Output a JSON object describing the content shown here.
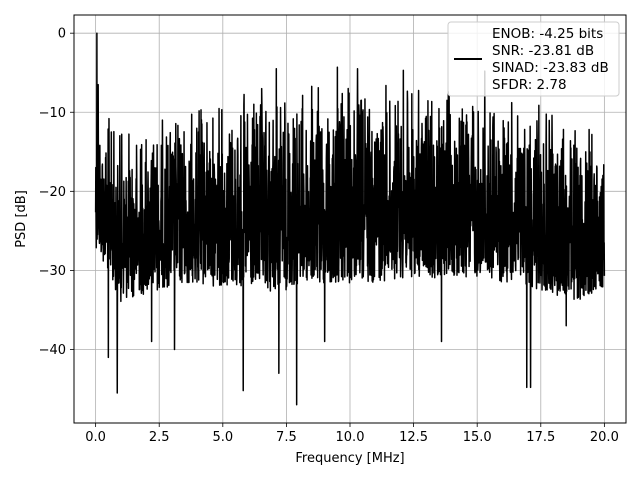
{
  "chart_data": {
    "type": "line",
    "title": "",
    "xlabel": "Frequency [MHz]",
    "ylabel": "PSD [dB]",
    "xlim": [
      -0.85,
      20.85
    ],
    "ylim": [
      -49.3,
      2.3
    ],
    "grid": true,
    "x_ticks": [
      0.0,
      2.5,
      5.0,
      7.5,
      10.0,
      12.5,
      15.0,
      17.5,
      20.0
    ],
    "x_tick_labels": [
      "0.0",
      "2.5",
      "5.0",
      "7.5",
      "10.0",
      "12.5",
      "15.0",
      "17.5",
      "20.0"
    ],
    "y_ticks": [
      0,
      -10,
      -20,
      -30,
      -40
    ],
    "y_tick_labels": [
      "0",
      "−10",
      "−20",
      "−30",
      "−40"
    ],
    "series_color": "#000000",
    "legend": {
      "placement": "top-right",
      "entries": [
        "ENOB: -4.25 bits",
        "SNR: -23.81 dB",
        "SINAD: -23.83 dB",
        "SFDR: 2.78"
      ]
    },
    "series": [
      {
        "x_range": [
          0.0,
          20.0
        ],
        "upper_envelope": {
          "x": [
            0.0,
            0.3,
            0.5,
            1.0,
            1.5,
            2.0,
            3.0,
            4.0,
            5.0,
            6.0,
            7.0,
            8.0,
            9.0,
            10.0,
            11.0,
            12.0,
            13.0,
            14.0,
            15.0,
            16.0,
            17.0,
            18.0,
            19.0,
            20.0
          ],
          "y": [
            -6.0,
            -10.0,
            -9.5,
            -11.5,
            -11.0,
            -10.5,
            -9.5,
            -8.5,
            -7.5,
            -6.8,
            -6.3,
            -6.0,
            -5.8,
            -5.8,
            -5.8,
            -6.0,
            -6.3,
            -6.8,
            -7.3,
            -7.8,
            -8.5,
            -9.5,
            -10.5,
            -12.0
          ]
        },
        "lower_envelope": {
          "x": [
            0.0,
            1.0,
            2.0,
            3.0,
            5.0,
            7.0,
            8.0,
            10.0,
            12.0,
            14.0,
            15.0,
            17.0,
            18.0,
            19.0,
            20.0
          ],
          "y": [
            -27.0,
            -34.0,
            -33.0,
            -32.0,
            -32.0,
            -33.0,
            -32.0,
            -32.0,
            -31.0,
            -31.0,
            -31.0,
            -32.0,
            -33.0,
            -34.0,
            -32.0
          ]
        },
        "dips": [
          {
            "x": 0.5,
            "y": -41.0
          },
          {
            "x": 0.85,
            "y": -45.5
          },
          {
            "x": 2.2,
            "y": -39.0
          },
          {
            "x": 3.1,
            "y": -40.0
          },
          {
            "x": 5.8,
            "y": -45.2
          },
          {
            "x": 7.2,
            "y": -43.0
          },
          {
            "x": 7.9,
            "y": -47.0
          },
          {
            "x": 9.0,
            "y": -39.0
          },
          {
            "x": 13.6,
            "y": -39.0
          },
          {
            "x": 16.95,
            "y": -44.8
          },
          {
            "x": 17.1,
            "y": -44.8
          },
          {
            "x": 18.5,
            "y": -37.0
          }
        ],
        "peaks": [
          {
            "x": 0.05,
            "y": 0.0
          },
          {
            "x": 0.1,
            "y": -6.5
          },
          {
            "x": 7.1,
            "y": -4.5
          },
          {
            "x": 9.5,
            "y": -4.3
          },
          {
            "x": 10.3,
            "y": -4.5
          },
          {
            "x": 12.1,
            "y": -4.7
          },
          {
            "x": 15.3,
            "y": -4.8
          }
        ]
      }
    ]
  }
}
